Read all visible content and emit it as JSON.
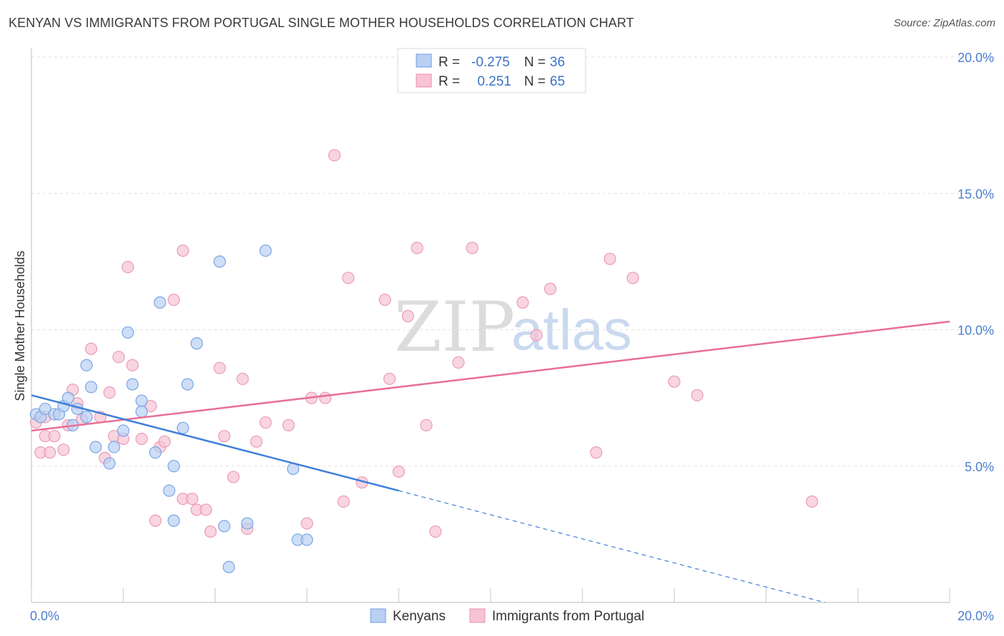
{
  "title": "KENYAN VS IMMIGRANTS FROM PORTUGAL SINGLE MOTHER HOUSEHOLDS CORRELATION CHART",
  "source": "Source: ZipAtlas.com",
  "watermark": {
    "part1": "ZIP",
    "part2": "atlas"
  },
  "colors": {
    "kenyans": "#3f7fd8",
    "kenyans_fill": "#b9d0f3",
    "portugal": "#e86f97",
    "portugal_fill": "#f7c3d4"
  },
  "legend_top": {
    "r_label": "R =",
    "n_label": "N =",
    "rows": [
      {
        "r": "-0.275",
        "n": "36"
      },
      {
        "r": "0.251",
        "n": "65"
      }
    ]
  },
  "chart_data": {
    "type": "scatter",
    "ylabel": "Single Mother Households",
    "xlabel": "",
    "xlim": [
      0,
      20
    ],
    "ylim": [
      0,
      20
    ],
    "x_tick_labels": [
      "0.0%",
      "20.0%"
    ],
    "y_tick_labels": [
      "5.0%",
      "10.0%",
      "15.0%",
      "20.0%"
    ],
    "y_ticks": [
      5,
      10,
      15,
      20
    ],
    "grid": true,
    "legend": "top-center",
    "series": [
      {
        "name": "Kenyans",
        "points": [
          [
            0.1,
            6.9
          ],
          [
            0.2,
            6.8
          ],
          [
            0.3,
            7.1
          ],
          [
            0.5,
            6.9
          ],
          [
            0.6,
            6.9
          ],
          [
            0.7,
            7.2
          ],
          [
            0.8,
            7.5
          ],
          [
            0.9,
            6.5
          ],
          [
            1.0,
            7.1
          ],
          [
            1.2,
            6.8
          ],
          [
            1.2,
            8.7
          ],
          [
            1.3,
            7.9
          ],
          [
            1.4,
            5.7
          ],
          [
            1.7,
            5.1
          ],
          [
            1.8,
            5.7
          ],
          [
            2.0,
            6.3
          ],
          [
            2.1,
            9.9
          ],
          [
            2.2,
            8.0
          ],
          [
            2.4,
            7.0
          ],
          [
            2.4,
            7.4
          ],
          [
            2.7,
            5.5
          ],
          [
            2.8,
            11.0
          ],
          [
            3.0,
            4.1
          ],
          [
            3.1,
            5.0
          ],
          [
            3.1,
            3.0
          ],
          [
            3.3,
            6.4
          ],
          [
            3.4,
            8.0
          ],
          [
            3.6,
            9.5
          ],
          [
            4.1,
            12.5
          ],
          [
            4.2,
            2.8
          ],
          [
            4.3,
            1.3
          ],
          [
            4.7,
            2.9
          ],
          [
            5.1,
            12.9
          ],
          [
            5.7,
            4.9
          ],
          [
            5.8,
            2.3
          ],
          [
            6.0,
            2.3
          ]
        ]
      },
      {
        "name": "Immigrants from Portugal",
        "points": [
          [
            0.1,
            6.6
          ],
          [
            0.2,
            5.5
          ],
          [
            0.3,
            6.1
          ],
          [
            0.4,
            5.5
          ],
          [
            0.5,
            6.1
          ],
          [
            0.7,
            5.6
          ],
          [
            0.8,
            6.5
          ],
          [
            0.9,
            7.8
          ],
          [
            1.0,
            7.3
          ],
          [
            1.1,
            6.7
          ],
          [
            1.3,
            9.3
          ],
          [
            1.5,
            6.8
          ],
          [
            1.6,
            5.3
          ],
          [
            1.7,
            7.7
          ],
          [
            1.8,
            6.1
          ],
          [
            1.9,
            9.0
          ],
          [
            2.0,
            6.0
          ],
          [
            2.1,
            12.3
          ],
          [
            2.2,
            8.7
          ],
          [
            2.4,
            6.0
          ],
          [
            2.6,
            7.2
          ],
          [
            2.7,
            3.0
          ],
          [
            2.8,
            5.7
          ],
          [
            2.9,
            5.9
          ],
          [
            3.1,
            11.1
          ],
          [
            3.3,
            12.9
          ],
          [
            3.3,
            3.8
          ],
          [
            3.5,
            3.8
          ],
          [
            3.6,
            3.4
          ],
          [
            3.8,
            3.4
          ],
          [
            3.9,
            2.6
          ],
          [
            4.1,
            8.6
          ],
          [
            4.2,
            6.1
          ],
          [
            4.4,
            4.6
          ],
          [
            4.6,
            8.2
          ],
          [
            4.7,
            2.7
          ],
          [
            4.9,
            5.9
          ],
          [
            5.1,
            6.6
          ],
          [
            5.6,
            6.5
          ],
          [
            6.0,
            2.9
          ],
          [
            6.1,
            7.5
          ],
          [
            6.4,
            7.5
          ],
          [
            6.6,
            16.4
          ],
          [
            6.8,
            3.7
          ],
          [
            6.9,
            11.9
          ],
          [
            7.2,
            4.4
          ],
          [
            7.7,
            11.1
          ],
          [
            7.8,
            8.2
          ],
          [
            8.0,
            4.8
          ],
          [
            8.2,
            10.5
          ],
          [
            8.4,
            13.0
          ],
          [
            8.6,
            6.5
          ],
          [
            8.8,
            2.6
          ],
          [
            9.3,
            8.8
          ],
          [
            9.6,
            13.0
          ],
          [
            10.7,
            11.0
          ],
          [
            11.0,
            9.8
          ],
          [
            11.3,
            11.5
          ],
          [
            12.3,
            5.5
          ],
          [
            12.6,
            12.6
          ],
          [
            13.1,
            11.9
          ],
          [
            14.0,
            8.1
          ],
          [
            14.5,
            7.6
          ],
          [
            17.0,
            3.7
          ],
          [
            0.3,
            6.8
          ]
        ]
      }
    ],
    "trendlines": [
      {
        "series": "Kenyans",
        "x0": 0,
        "y0": 7.6,
        "x1": 8.0,
        "y1": 4.1,
        "dashed_to_x": 20,
        "dashed_to_y": -1.2
      },
      {
        "series": "Immigrants from Portugal",
        "x0": 0,
        "y0": 6.3,
        "x1": 20,
        "y1": 10.3
      }
    ]
  }
}
